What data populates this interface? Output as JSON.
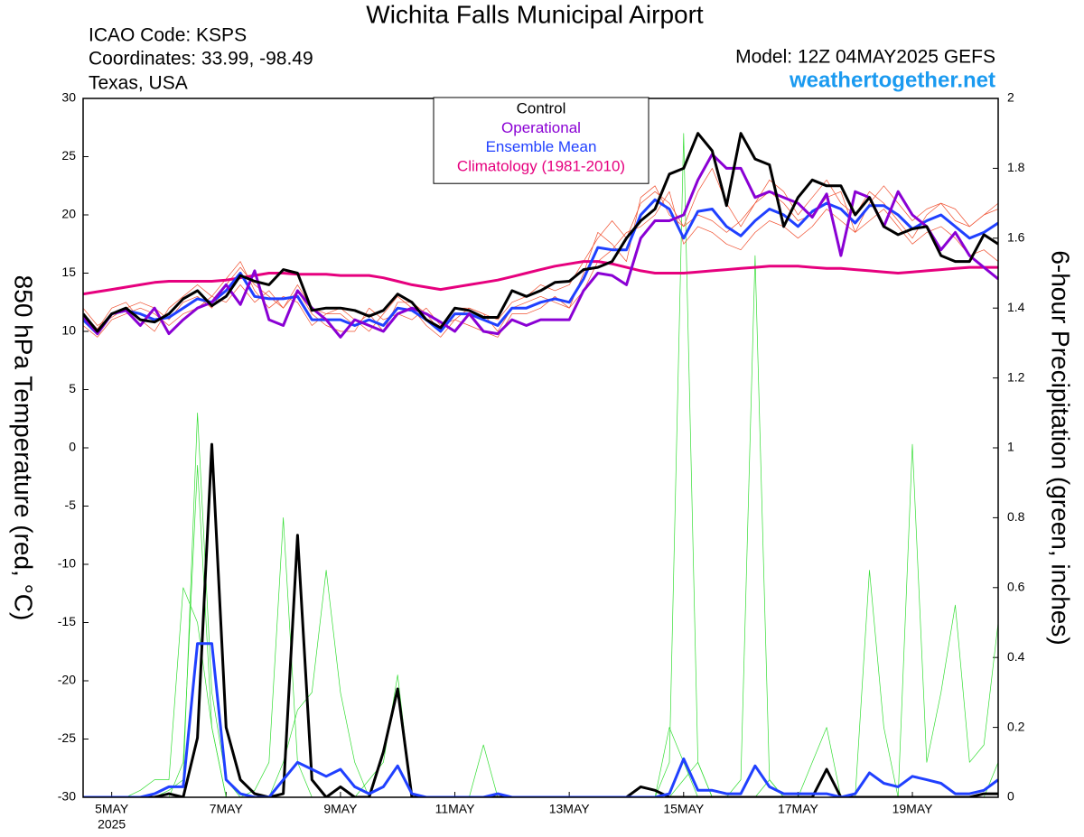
{
  "chart_data": {
    "type": "line",
    "title": "Wichita Falls Municipal Airport",
    "info": [
      "ICAO Code: KSPS",
      "Coordinates: 33.99, -98.49",
      "Texas, USA"
    ],
    "model": "Model: 12Z 04MAY2025 GEFS",
    "source": "weathertogether.net",
    "ylabel": "850 hPa Temperature (red, °C)",
    "y2label": "6-hour Precipitation (green, inches)",
    "xlim": [
      0,
      384
    ],
    "xticks": [
      {
        "value": 12,
        "label": "5MAY"
      },
      {
        "value": 60,
        "label": "7MAY"
      },
      {
        "value": 108,
        "label": "9MAY"
      },
      {
        "value": 156,
        "label": "11MAY"
      },
      {
        "value": 204,
        "label": "13MAY"
      },
      {
        "value": 252,
        "label": "15MAY"
      },
      {
        "value": 300,
        "label": "17MAY"
      },
      {
        "value": 348,
        "label": "19MAY"
      }
    ],
    "xtick_year": "2025",
    "ylim": [
      -30,
      30
    ],
    "yticks": [
      -30,
      -25,
      -20,
      -15,
      -10,
      -5,
      0,
      5,
      10,
      15,
      20,
      25,
      30
    ],
    "y2lim": [
      0,
      2
    ],
    "y2ticks": [
      0,
      0.2,
      0.4,
      0.6,
      0.8,
      1,
      1.2,
      1.4,
      1.6,
      1.8,
      2
    ],
    "x": [
      0,
      6,
      12,
      18,
      24,
      30,
      36,
      42,
      48,
      54,
      60,
      66,
      72,
      78,
      84,
      90,
      96,
      102,
      108,
      114,
      120,
      126,
      132,
      138,
      144,
      150,
      156,
      162,
      168,
      174,
      180,
      186,
      192,
      198,
      204,
      210,
      216,
      222,
      228,
      234,
      240,
      246,
      252,
      258,
      264,
      270,
      276,
      282,
      288,
      294,
      300,
      306,
      312,
      318,
      324,
      330,
      336,
      342,
      348,
      354,
      360,
      366,
      372,
      378,
      384
    ],
    "series": [
      {
        "color": "#33dd33",
        "line_width": 0.7,
        "axis": "y2",
        "values": [
          0,
          0,
          0,
          0,
          0,
          0,
          0.02,
          0.05,
          1.1,
          0.3,
          0.05,
          0,
          0,
          0,
          0,
          0,
          0,
          0,
          0,
          0,
          0,
          0,
          0,
          0,
          0,
          0,
          0,
          0,
          0,
          0,
          0,
          0,
          0,
          0,
          0,
          0,
          0,
          0,
          0,
          0,
          0,
          0.1,
          1.9,
          0.1,
          0,
          0,
          0,
          0,
          0,
          0,
          0,
          0,
          0,
          0,
          0,
          0,
          0,
          0,
          0,
          0,
          0,
          0,
          0,
          0,
          0
        ]
      },
      {
        "color": "#33dd33",
        "line_width": 0.7,
        "axis": "y2",
        "values": [
          0,
          0,
          0,
          0,
          0,
          0,
          0,
          0.1,
          0.95,
          0.2,
          0,
          0,
          0.02,
          0.1,
          0.8,
          0.1,
          0,
          0,
          0,
          0,
          0.05,
          0.1,
          0.35,
          0,
          0,
          0,
          0,
          0,
          0,
          0,
          0,
          0,
          0,
          0,
          0,
          0,
          0,
          0,
          0,
          0,
          0,
          0,
          0.05,
          0.1,
          0,
          0,
          0.05,
          1.55,
          0.05,
          0,
          0,
          0,
          0,
          0,
          0,
          0,
          0,
          0,
          0,
          0,
          0,
          0,
          0,
          0,
          0.1
        ]
      },
      {
        "color": "#33dd33",
        "line_width": 0.7,
        "axis": "y2",
        "values": [
          0,
          0,
          0,
          0,
          0.02,
          0.05,
          0.05,
          0.6,
          0.5,
          0.2,
          0,
          0,
          0,
          0,
          0.1,
          0.25,
          0.3,
          0.65,
          0.3,
          0.1,
          0,
          0,
          0,
          0,
          0,
          0,
          0,
          0,
          0.15,
          0,
          0,
          0,
          0,
          0,
          0,
          0,
          0,
          0,
          0,
          0,
          0,
          0.2,
          0.1,
          0,
          0,
          0,
          0,
          0,
          0.05,
          0,
          0,
          0.1,
          0.2,
          0,
          0,
          0.65,
          0.2,
          0,
          1.01,
          0.1,
          0.3,
          0.55,
          0.1,
          0.15,
          0.5
        ]
      },
      {
        "color": "#f05030",
        "line_width": 0.7,
        "values": [
          11.5,
          10.2,
          12,
          12.5,
          11,
          10,
          12,
          13,
          14,
          13,
          14.5,
          16,
          13.5,
          12,
          13,
          12.5,
          10.5,
          11.5,
          12,
          11,
          10,
          11.5,
          13,
          12,
          10.5,
          9.5,
          11,
          12,
          11.5,
          11,
          12.5,
          13,
          14,
          13.5,
          14,
          16,
          18,
          19.5,
          18,
          21,
          22,
          21,
          19,
          22,
          24,
          21,
          19,
          21,
          23,
          22,
          20,
          21.5,
          23,
          21,
          20,
          22,
          21,
          19.5,
          18,
          20,
          21,
          20.5,
          19,
          20,
          21
        ]
      },
      {
        "color": "#f05030",
        "line_width": 0.7,
        "values": [
          10.5,
          9.5,
          11,
          11.5,
          12,
          11.5,
          10.5,
          11.5,
          12,
          13,
          12.5,
          14,
          12.5,
          13.5,
          12,
          13.5,
          11.5,
          10.5,
          10,
          10,
          12,
          11,
          11.5,
          11,
          12,
          10.5,
          11,
          10.5,
          10,
          9.5,
          11.5,
          11.5,
          12,
          13,
          12,
          13.5,
          16,
          17,
          18.5,
          19,
          20,
          22,
          17.5,
          19,
          18.5,
          17.5,
          17,
          18.5,
          19.5,
          19,
          18,
          19,
          20.5,
          19.5,
          18.5,
          19.5,
          20.5,
          19,
          17.5,
          18.5,
          19,
          18,
          16.5,
          17,
          16
        ]
      },
      {
        "color": "#f05030",
        "line_width": 0.7,
        "values": [
          12,
          10.5,
          11.2,
          12,
          12.5,
          12,
          11,
          12.5,
          13,
          12,
          14,
          15.5,
          14,
          13,
          12,
          14,
          12,
          11.5,
          11.5,
          10.5,
          11.5,
          10,
          12.5,
          12.5,
          11.5,
          10,
          12,
          12,
          11.5,
          10,
          12,
          12.5,
          13,
          12.5,
          12,
          15,
          18.5,
          17.5,
          16,
          21.5,
          22.5,
          20,
          19,
          20,
          19.5,
          18.5,
          19.5,
          21,
          22,
          21,
          19.5,
          20,
          21.5,
          22,
          18.5,
          21,
          22.5,
          21,
          19.5,
          20.5,
          21,
          19.5,
          19,
          20,
          20.5
        ]
      },
      {
        "color": "#000000",
        "line_width": 3,
        "axis": "y2",
        "values": [
          0,
          0,
          0,
          0,
          0,
          0,
          0.01,
          0,
          0.17,
          1.01,
          0.2,
          0.05,
          0.01,
          0,
          0.01,
          0.75,
          0.05,
          0,
          0.03,
          0,
          0,
          0.13,
          0.31,
          0,
          0,
          0,
          0,
          0,
          0,
          0,
          0,
          0,
          0,
          0,
          0,
          0,
          0,
          0,
          0,
          0.03,
          0.02,
          0,
          0,
          0,
          0,
          0,
          0,
          0,
          0,
          0,
          0,
          0,
          0.08,
          0,
          0,
          0,
          0,
          0,
          0,
          0,
          0,
          0,
          0,
          0.01,
          0.01
        ]
      },
      {
        "color": "#2040ff",
        "line_width": 3,
        "axis": "y2",
        "values": [
          0,
          0,
          0,
          0,
          0,
          0.01,
          0.03,
          0.03,
          0.44,
          0.44,
          0.05,
          0.01,
          0,
          0,
          0.05,
          0.1,
          0.08,
          0.06,
          0.08,
          0.03,
          0.01,
          0.03,
          0.09,
          0.01,
          0,
          0,
          0,
          0,
          0,
          0.01,
          0,
          0,
          0,
          0,
          0,
          0,
          0,
          0,
          0,
          0,
          0,
          0.01,
          0.11,
          0.02,
          0.02,
          0.01,
          0.01,
          0.09,
          0.03,
          0.01,
          0.01,
          0.01,
          0.01,
          0,
          0.01,
          0.07,
          0.04,
          0.03,
          0.06,
          0.05,
          0.04,
          0.01,
          0.01,
          0.02,
          0.05
        ]
      },
      {
        "name": "Climatology (1981-2010)",
        "color": "#e6007e",
        "line_width": 3,
        "values": [
          13.2,
          13.4,
          13.6,
          13.8,
          14,
          14.2,
          14.3,
          14.3,
          14.3,
          14.3,
          14.4,
          14.6,
          14.8,
          15,
          15,
          14.9,
          14.9,
          14.9,
          14.8,
          14.8,
          14.8,
          14.6,
          14.3,
          14,
          13.8,
          13.6,
          13.8,
          14,
          14.2,
          14.4,
          14.7,
          15,
          15.3,
          15.6,
          15.8,
          16,
          16,
          15.8,
          15.5,
          15.2,
          15,
          15,
          15,
          15.1,
          15.2,
          15.3,
          15.4,
          15.5,
          15.6,
          15.6,
          15.6,
          15.5,
          15.4,
          15.4,
          15.3,
          15.2,
          15.1,
          15,
          15.1,
          15.2,
          15.3,
          15.4,
          15.5,
          15.5,
          15.5
        ]
      },
      {
        "name": "Ensemble Mean",
        "color": "#2040ff",
        "line_width": 3,
        "values": [
          11,
          9.8,
          11.5,
          11.8,
          11.5,
          11,
          11.2,
          12,
          12.8,
          12.5,
          13.5,
          15,
          13,
          12.8,
          12.8,
          13,
          11,
          11,
          11,
          10.5,
          11,
          10.5,
          12,
          11.8,
          11,
          10,
          11.5,
          11.5,
          11,
          10.5,
          12,
          12,
          12.5,
          12.8,
          12.5,
          14.5,
          17.2,
          17,
          17,
          20,
          21.3,
          20.5,
          18,
          20.3,
          20.5,
          19,
          18.2,
          19.5,
          20.5,
          20,
          19,
          20.3,
          21,
          20.5,
          19.3,
          20.8,
          20.8,
          20,
          18.8,
          19.5,
          20,
          19,
          18,
          18.5,
          19.3
        ]
      },
      {
        "name": "Operational",
        "color": "#8a00d4",
        "line_width": 3,
        "values": [
          11.3,
          9.8,
          11.5,
          11.8,
          10.5,
          12,
          9.8,
          11,
          12,
          12.5,
          14,
          12.3,
          15.2,
          11,
          10.5,
          13.5,
          12,
          11,
          9.5,
          11,
          10.5,
          10,
          11.5,
          12,
          11.5,
          10.8,
          10,
          11.5,
          10,
          9.8,
          11,
          10.5,
          11,
          11,
          11,
          13.5,
          15,
          14.8,
          14,
          18,
          19.5,
          19.5,
          20,
          23,
          25.2,
          24,
          24,
          21.5,
          22,
          21.5,
          21,
          19.8,
          21.8,
          16.5,
          22,
          21.5,
          19,
          22,
          20,
          19,
          17,
          18.5,
          16.5,
          15.5,
          14.5
        ]
      },
      {
        "name": "Control",
        "color": "#000000",
        "line_width": 3,
        "values": [
          11.5,
          10,
          11.5,
          12,
          11,
          10.8,
          11.5,
          12.8,
          13.5,
          12.2,
          13,
          14.8,
          14.3,
          14,
          15.3,
          15,
          11.8,
          12,
          12,
          11.8,
          11.3,
          11.8,
          13.2,
          12.5,
          11,
          10.3,
          12,
          11.8,
          11.2,
          11.2,
          13.5,
          13,
          13.5,
          14.2,
          14.3,
          15.3,
          15.5,
          16,
          18,
          19.5,
          20.5,
          23.5,
          24,
          27,
          25.5,
          20.8,
          27,
          24.8,
          24.3,
          19,
          21.5,
          23,
          22.5,
          22.5,
          20,
          21.5,
          19,
          18.3,
          18.8,
          19,
          16.5,
          16,
          16,
          18.3,
          17.5
        ]
      }
    ]
  }
}
